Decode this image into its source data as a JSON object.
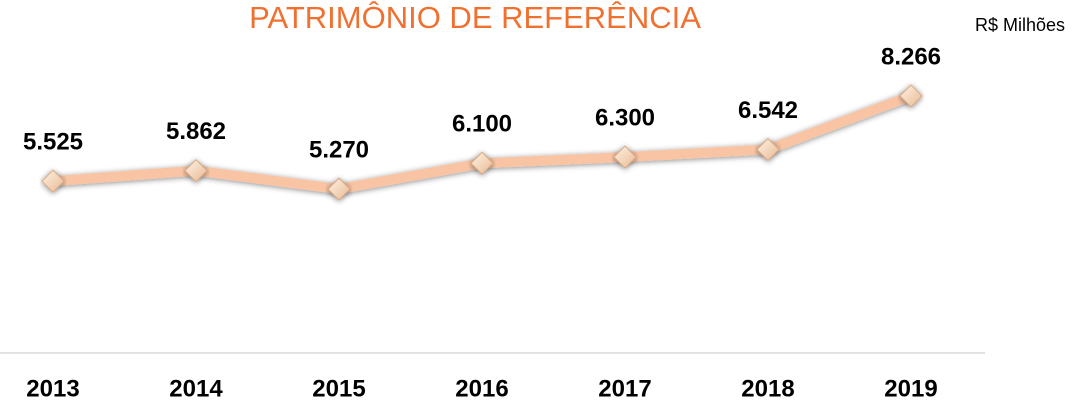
{
  "chart_data": {
    "type": "line",
    "title": "PATRIMÔNIO DE REFERÊNCIA",
    "subtitle": "R$ Milhões",
    "categories": [
      "2013",
      "2014",
      "2015",
      "2016",
      "2017",
      "2018",
      "2019"
    ],
    "series": [
      {
        "name": "Patrimônio de Referência",
        "color": "#f8c4a4",
        "values": [
          5525,
          5862,
          5270,
          6100,
          6300,
          6542,
          8266
        ],
        "value_labels": [
          "5.525",
          "5.862",
          "5.270",
          "6.100",
          "6.300",
          "6.542",
          "8.266"
        ]
      }
    ],
    "ylim": [
      0,
      10000
    ]
  }
}
